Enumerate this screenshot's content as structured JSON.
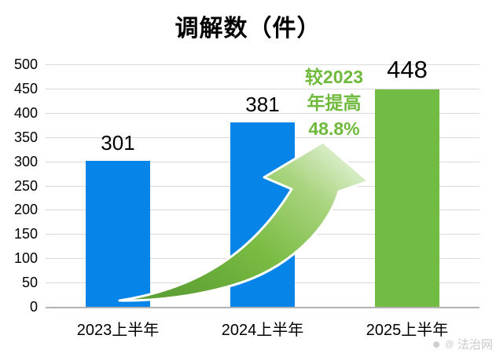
{
  "chart_data": {
    "type": "bar",
    "title": "调解数（件）",
    "categories": [
      "2023上半年",
      "2024上半年",
      "2025上半年"
    ],
    "values": [
      301,
      381,
      448
    ],
    "series": [
      {
        "name": "调解数",
        "values": [
          301,
          381,
          448
        ]
      }
    ],
    "bar_colors": [
      "#0784e8",
      "#0784e8",
      "#73bc43"
    ],
    "value_label_color": "#000000",
    "ylim": [
      0,
      500
    ],
    "ytick_step": 50,
    "grid": true,
    "legend_position": "none",
    "xlabel": "",
    "ylabel": "",
    "annotation": {
      "lines": [
        "较2023",
        "年提高",
        "48.8%"
      ],
      "color": "#6fb93c"
    },
    "arrow": {
      "gradient": [
        "#5fa134",
        "#79bb42",
        "#a9d47e",
        "#e9f5e0"
      ],
      "outline": "#ffffff"
    }
  },
  "ui_colors": {
    "grid_line": "#d9d9d9",
    "axis_line": "#b3b3b3",
    "tick_text": "#000000"
  },
  "watermark": {
    "icon1": "☻",
    "icon2": "@",
    "text": "法治网"
  }
}
